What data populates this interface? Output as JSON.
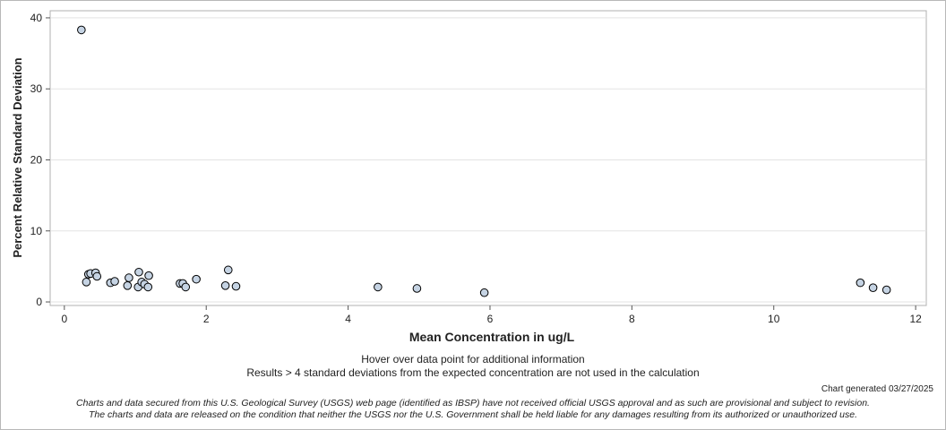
{
  "chart_data": {
    "type": "scatter",
    "xlabel": "Mean Concentration in ug/L",
    "ylabel": "Percent Relative Standard Deviation",
    "xlim": [
      -0.2,
      12.15
    ],
    "ylim": [
      -0.5,
      41
    ],
    "xticks": [
      0,
      2,
      4,
      6,
      8,
      10,
      12
    ],
    "yticks": [
      0,
      10,
      20,
      30,
      40
    ],
    "grid": "horizontal",
    "marker_color": "#c5d3e3",
    "marker_edge": "#000000",
    "points": [
      {
        "x": 0.24,
        "y": 38.3
      },
      {
        "x": 0.31,
        "y": 2.8
      },
      {
        "x": 0.34,
        "y": 3.9
      },
      {
        "x": 0.37,
        "y": 4.0
      },
      {
        "x": 0.44,
        "y": 4.1
      },
      {
        "x": 0.46,
        "y": 3.6
      },
      {
        "x": 0.65,
        "y": 2.7
      },
      {
        "x": 0.71,
        "y": 2.9
      },
      {
        "x": 0.89,
        "y": 2.3
      },
      {
        "x": 0.91,
        "y": 3.4
      },
      {
        "x": 1.04,
        "y": 2.1
      },
      {
        "x": 1.05,
        "y": 4.2
      },
      {
        "x": 1.09,
        "y": 2.8
      },
      {
        "x": 1.13,
        "y": 2.5
      },
      {
        "x": 1.18,
        "y": 2.1
      },
      {
        "x": 1.19,
        "y": 3.7
      },
      {
        "x": 1.63,
        "y": 2.6
      },
      {
        "x": 1.67,
        "y": 2.6
      },
      {
        "x": 1.71,
        "y": 2.1
      },
      {
        "x": 1.86,
        "y": 3.2
      },
      {
        "x": 2.27,
        "y": 2.3
      },
      {
        "x": 2.31,
        "y": 4.5
      },
      {
        "x": 2.42,
        "y": 2.2
      },
      {
        "x": 4.42,
        "y": 2.1
      },
      {
        "x": 4.97,
        "y": 1.9
      },
      {
        "x": 5.92,
        "y": 1.3
      },
      {
        "x": 11.22,
        "y": 2.7
      },
      {
        "x": 11.4,
        "y": 2.0
      },
      {
        "x": 11.59,
        "y": 1.7
      }
    ]
  },
  "notes": {
    "hover": "Hover over data point for additional information",
    "results": "Results > 4 standard deviations from the expected concentration are not used in the calculation"
  },
  "generated": "Chart generated 03/27/2025",
  "disclaimer": {
    "line1": "Charts and data secured from this U.S. Geological Survey (USGS) web page (identified as IBSP) have not received official USGS approval and as such are provisional and subject to revision.",
    "line2": "The charts and data are released on the condition that neither the USGS nor the U.S. Government shall be held liable for any damages resulting from its authorized or unauthorized use."
  }
}
